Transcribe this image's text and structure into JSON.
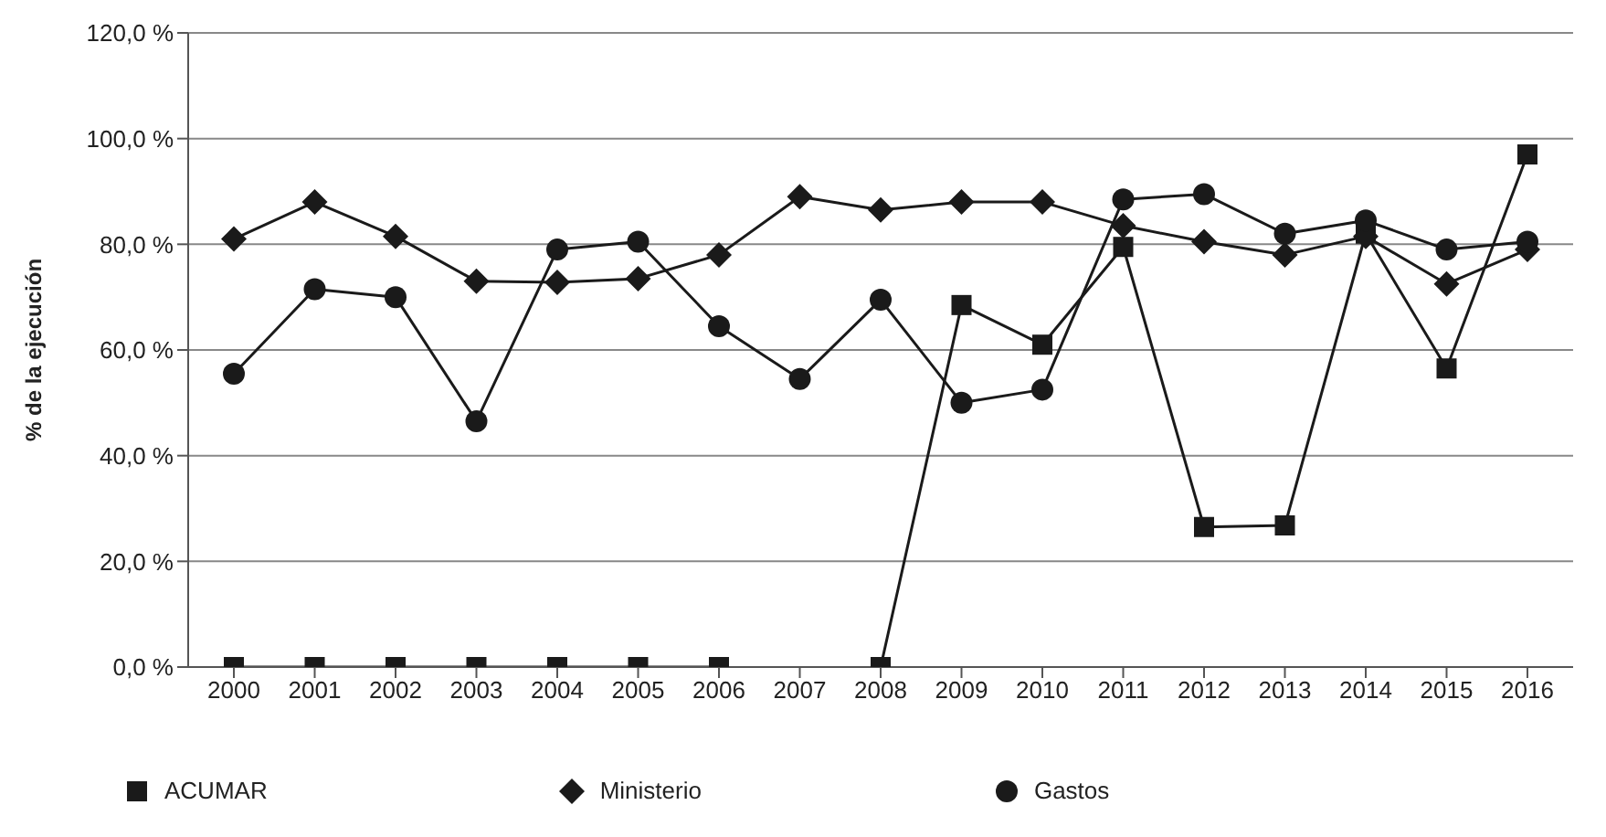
{
  "chart_data": {
    "type": "line",
    "ylabel": "% de la ejecución",
    "categories": [
      "2000",
      "2001",
      "2002",
      "2003",
      "2004",
      "2005",
      "2006",
      "2007",
      "2008",
      "2009",
      "2010",
      "2011",
      "2012",
      "2013",
      "2014",
      "2015",
      "2016"
    ],
    "series": [
      {
        "name": "ACUMAR",
        "color": "#1a1a1a",
        "marker": "square",
        "values": [
          0,
          0,
          0,
          0,
          0,
          0,
          0,
          null,
          0,
          68.5,
          61,
          79.5,
          26.5,
          26.8,
          82,
          56.5,
          97
        ]
      },
      {
        "name": "Ministerio",
        "color": "#1a1a1a",
        "marker": "diamond",
        "values": [
          81,
          88,
          81.5,
          73,
          72.8,
          73.5,
          78,
          89,
          86.5,
          88,
          88,
          83.5,
          80.5,
          78,
          81.5,
          72.5,
          79
        ]
      },
      {
        "name": "Gastos",
        "color": "#1a1a1a",
        "marker": "circle",
        "values": [
          55.5,
          71.5,
          70,
          46.5,
          79,
          80.5,
          64.5,
          54.5,
          69.5,
          50,
          52.5,
          88.5,
          89.5,
          82,
          84.5,
          79,
          80.5
        ]
      }
    ],
    "ylim": [
      0,
      120
    ],
    "yticks": [
      {
        "value": 0,
        "label": "0,0 %"
      },
      {
        "value": 20,
        "label": "20,0 %"
      },
      {
        "value": 40,
        "label": "40,0 %"
      },
      {
        "value": 60,
        "label": "60,0 %"
      },
      {
        "value": 80,
        "label": "80,0 %"
      },
      {
        "value": 100,
        "label": "100,0 %"
      },
      {
        "value": 120,
        "label": "120,0 %"
      }
    ],
    "grid": "y",
    "legend": "bottom",
    "line_style": "solid"
  }
}
